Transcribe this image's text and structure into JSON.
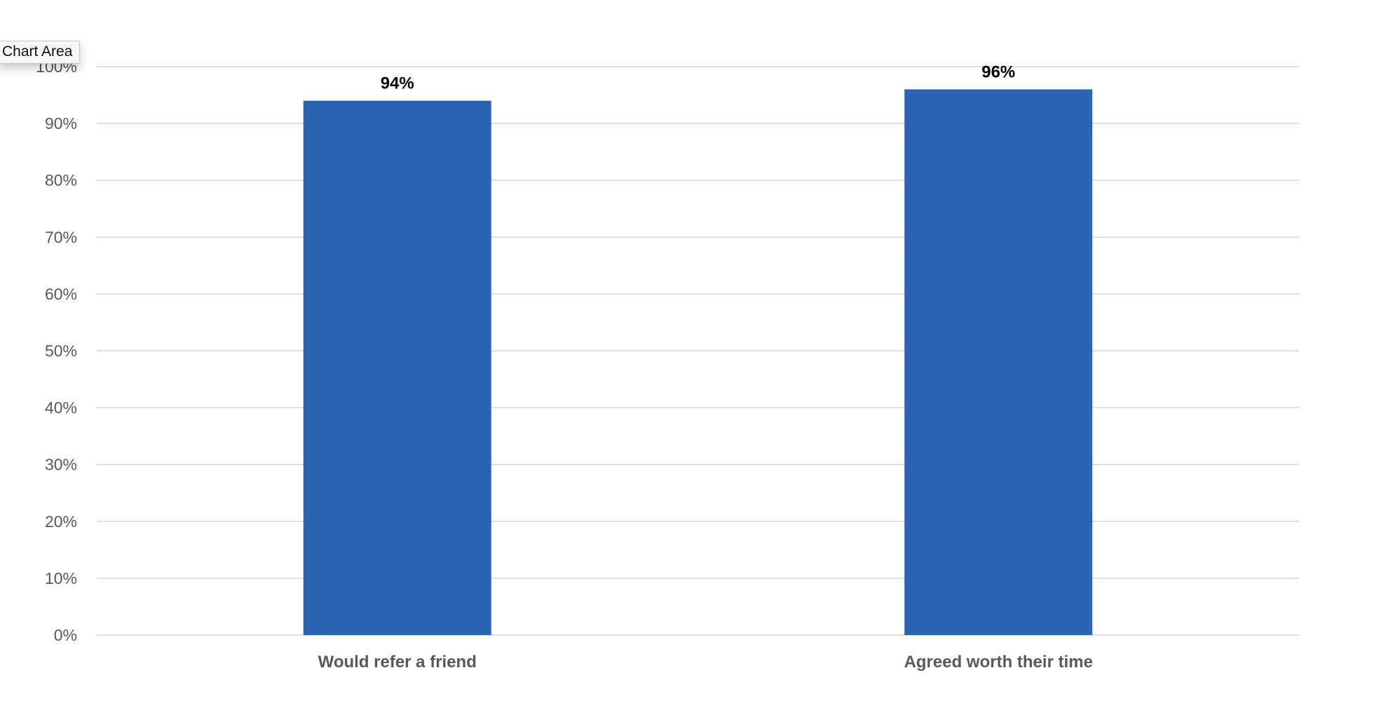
{
  "tooltip": {
    "label": "Chart Area"
  },
  "colors": {
    "bar": "#2b64b0",
    "grid": "#d3d3d3",
    "tick_text": "#595959",
    "category_text": "#595959",
    "data_label": "#000000"
  },
  "chart_data": {
    "type": "bar",
    "categories": [
      "Would refer a friend",
      "Agreed worth their time"
    ],
    "values": [
      94,
      96
    ],
    "data_labels": [
      "94%",
      "96%"
    ],
    "title": "",
    "xlabel": "",
    "ylabel": "",
    "ylim": [
      0,
      100
    ],
    "y_ticks": [
      0,
      10,
      20,
      30,
      40,
      50,
      60,
      70,
      80,
      90,
      100
    ],
    "y_tick_labels": [
      "0%",
      "10%",
      "20%",
      "30%",
      "40%",
      "50%",
      "60%",
      "70%",
      "80%",
      "90%",
      "100%"
    ],
    "grid": true,
    "legend": "none"
  }
}
